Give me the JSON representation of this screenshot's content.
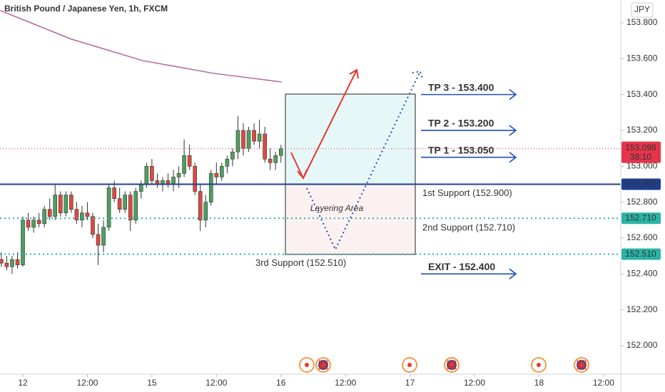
{
  "chart_data": {
    "type": "candlestick",
    "title": "British Pound / Japanese Yen, 1h, FXCM",
    "currency": "JPY",
    "xlim": [
      -4.25,
      111.2
    ],
    "ylim": [
      151.841,
      153.927
    ],
    "yticks": [
      {
        "value": 152.0,
        "label": "152.000"
      },
      {
        "value": 152.2,
        "label": "152.200"
      },
      {
        "value": 152.4,
        "label": "152.400"
      },
      {
        "value": 152.6,
        "label": "152.600"
      },
      {
        "value": 152.8,
        "label": "152.800"
      },
      {
        "value": 153.0,
        "label": "153.000"
      },
      {
        "value": 153.2,
        "label": "153.200"
      },
      {
        "value": 153.4,
        "label": "153.400"
      },
      {
        "value": 153.6,
        "label": "153.600"
      },
      {
        "value": 153.8,
        "label": "153.800"
      }
    ],
    "xticks": [
      {
        "value": 0,
        "label": "12"
      },
      {
        "value": 12,
        "label": "12:00"
      },
      {
        "value": 24,
        "label": "15"
      },
      {
        "value": 36,
        "label": "12:00"
      },
      {
        "value": 48,
        "label": "16"
      },
      {
        "value": 60,
        "label": "12:00"
      },
      {
        "value": 72,
        "label": "17"
      },
      {
        "value": 84,
        "label": "12:00"
      },
      {
        "value": 96,
        "label": "18"
      },
      {
        "value": 108,
        "label": "12:00"
      }
    ],
    "up_color": "#4e9f5f",
    "down_color": "#de4a3f",
    "x": [
      -4,
      -3,
      -2,
      -1,
      0,
      1,
      2,
      3,
      4,
      5,
      6,
      7,
      8,
      9,
      10,
      11,
      12,
      13,
      14,
      15,
      16,
      17,
      18,
      19,
      20,
      21,
      22,
      23,
      24,
      25,
      26,
      27,
      28,
      29,
      30,
      31,
      32,
      33,
      34,
      35,
      36,
      37,
      38,
      39,
      40,
      41,
      42,
      43,
      44,
      45,
      46,
      47,
      48
    ],
    "open": [
      152.48,
      152.46,
      152.44,
      152.48,
      152.45,
      152.7,
      152.66,
      152.7,
      152.68,
      152.76,
      152.72,
      152.84,
      152.74,
      152.84,
      152.76,
      152.7,
      152.74,
      152.72,
      152.62,
      152.56,
      152.66,
      152.88,
      152.82,
      152.76,
      152.84,
      152.7,
      152.86,
      152.9,
      153.0,
      152.92,
      152.9,
      152.92,
      152.9,
      152.94,
      152.96,
      153.06,
      153.0,
      152.86,
      152.7,
      152.8,
      152.96,
      152.94,
      153.0,
      153.04,
      153.08,
      153.2,
      153.1,
      153.2,
      153.14,
      153.18,
      153.04,
      153.02,
      153.06
    ],
    "high": [
      152.52,
      152.5,
      152.5,
      152.52,
      152.72,
      152.74,
      152.72,
      152.74,
      152.78,
      152.82,
      152.9,
      152.86,
      152.86,
      152.86,
      152.8,
      152.78,
      152.8,
      152.74,
      152.68,
      152.7,
      152.9,
      152.92,
      152.88,
      152.86,
      152.86,
      152.88,
      152.92,
      153.02,
      153.04,
      152.96,
      152.94,
      152.96,
      152.98,
      153.0,
      153.15,
      153.12,
      153.02,
      152.9,
      152.84,
      152.98,
      153.02,
      153.02,
      153.06,
      153.1,
      153.28,
      153.24,
      153.22,
      153.24,
      153.26,
      153.22,
      153.1,
      153.08,
      153.12
    ],
    "low": [
      152.44,
      152.42,
      152.4,
      152.43,
      152.44,
      152.64,
      152.63,
      152.66,
      152.66,
      152.7,
      152.7,
      152.72,
      152.72,
      152.74,
      152.68,
      152.66,
      152.7,
      152.6,
      152.45,
      152.52,
      152.64,
      152.8,
      152.74,
      152.74,
      152.64,
      152.68,
      152.82,
      152.88,
      152.9,
      152.88,
      152.86,
      152.88,
      152.86,
      152.88,
      152.94,
      152.98,
      152.84,
      152.64,
      152.66,
      152.78,
      152.9,
      152.92,
      152.96,
      153.0,
      153.04,
      153.06,
      153.08,
      153.12,
      153.1,
      153.02,
      152.98,
      152.98,
      153.02
    ],
    "close": [
      152.46,
      152.44,
      152.48,
      152.45,
      152.7,
      152.66,
      152.7,
      152.68,
      152.76,
      152.72,
      152.84,
      152.74,
      152.84,
      152.76,
      152.7,
      152.74,
      152.72,
      152.62,
      152.56,
      152.66,
      152.88,
      152.82,
      152.76,
      152.84,
      152.7,
      152.86,
      152.9,
      153.0,
      152.92,
      152.9,
      152.92,
      152.9,
      152.94,
      152.96,
      153.06,
      153.0,
      152.86,
      152.7,
      152.8,
      152.96,
      152.94,
      153.0,
      153.04,
      153.08,
      153.2,
      153.1,
      153.2,
      153.14,
      153.18,
      153.04,
      153.02,
      153.06,
      153.098
    ],
    "moving_average": {
      "color": "#b5659a",
      "x": [
        -4.2,
        9,
        22.3,
        35.5,
        48.1
      ],
      "values": [
        153.868,
        153.709,
        153.589,
        153.518,
        153.47
      ]
    },
    "current": {
      "value": 153.098,
      "label": "153.098",
      "countdown": "38:10",
      "color": "#e5344a"
    },
    "levels": [
      {
        "value": 152.9,
        "label": "152.900",
        "color": "#1e3f8f",
        "style": "solid"
      },
      {
        "value": 152.71,
        "label": "152.710",
        "color": "#2bb3a6",
        "style": "dotted"
      },
      {
        "value": 152.51,
        "label": "152.510",
        "color": "#2bb3a6",
        "style": "dotted"
      }
    ],
    "targets": [
      {
        "text": "TP 3 - 153.400",
        "value": 153.4,
        "color": "#1f9e8f"
      },
      {
        "text": "TP 2 - 153.200",
        "value": 153.2,
        "color": "#1f9e8f"
      },
      {
        "text": "TP 1 - 153.050",
        "value": 153.05,
        "color": "#1f9e8f"
      },
      {
        "text": "EXIT - 152.400",
        "value": 152.4,
        "color": "#e03a2f"
      }
    ],
    "supports": [
      {
        "text": "1st Support (152.900)",
        "value": 152.9
      },
      {
        "text": "2nd Support (152.710)",
        "value": 152.71
      },
      {
        "text": "3rd Support (152.510)",
        "value": 152.51
      }
    ],
    "zone_label": "Layering Area"
  }
}
